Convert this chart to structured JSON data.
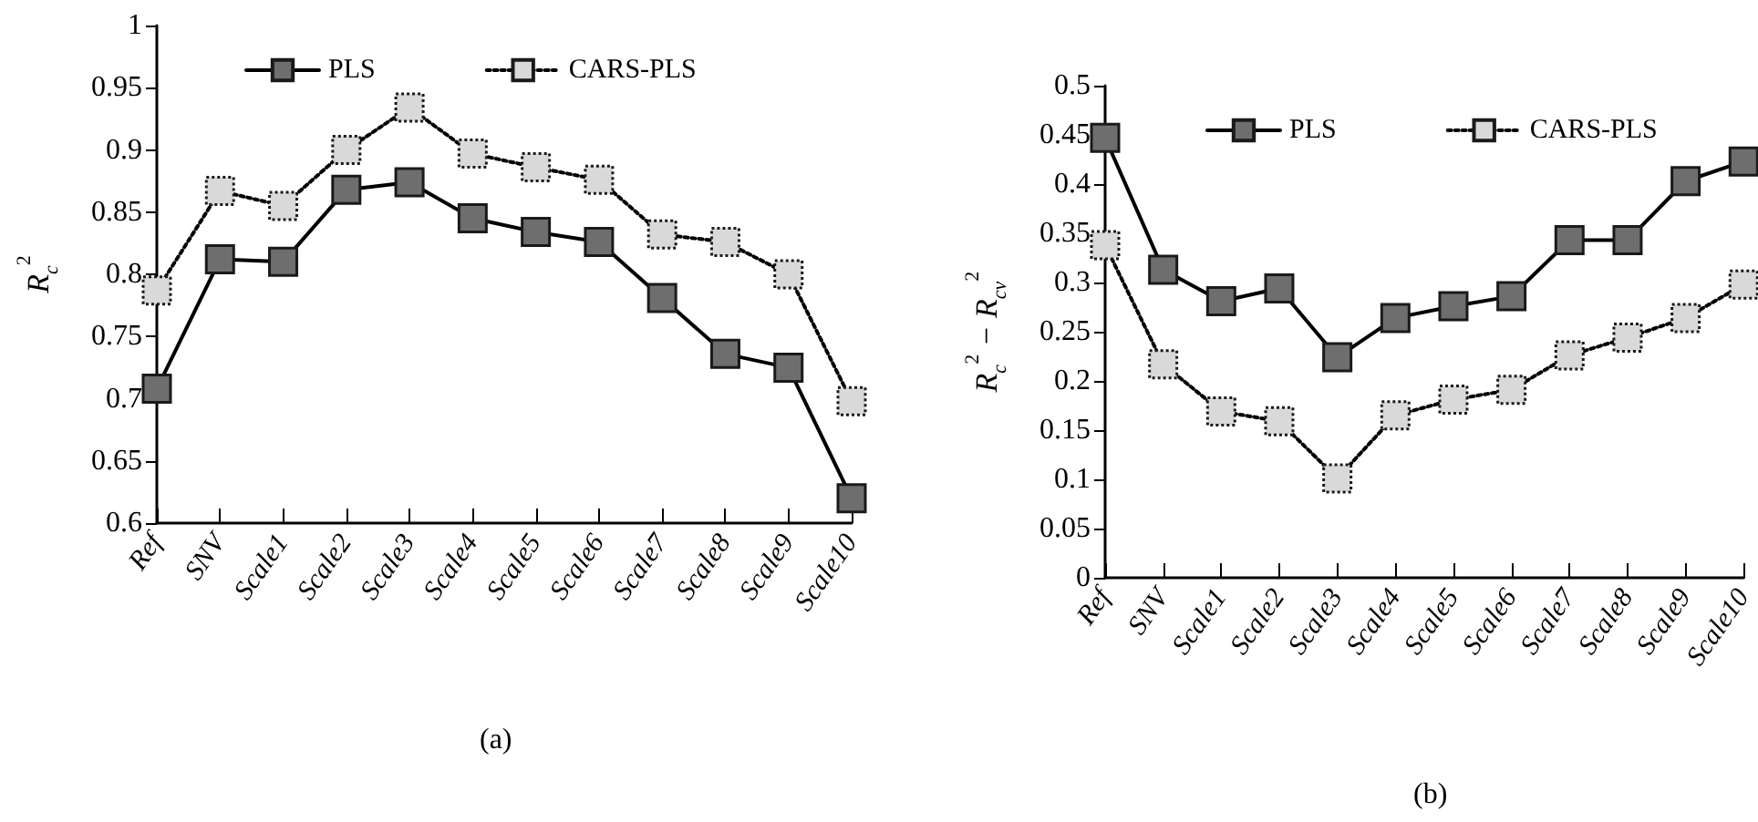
{
  "chart_data": [
    {
      "type": "line",
      "ylabel": "R$_{c}$$^{2}$",
      "categories": [
        "Ref",
        "SNV",
        "Scale1",
        "Scale2",
        "Scale3",
        "Scale4",
        "Scale5",
        "Scale6",
        "Scale7",
        "Scale8",
        "Scale9",
        "Scale10"
      ],
      "series": [
        {
          "name": "PLS",
          "color": "#6e6e6e",
          "line_style": "solid",
          "values": [
            0.708,
            0.812,
            0.81,
            0.868,
            0.874,
            0.845,
            0.834,
            0.826,
            0.781,
            0.736,
            0.725,
            0.62
          ]
        },
        {
          "name": "CARS-PLS",
          "color": "#d9d9d9",
          "line_style": "dotted",
          "values": [
            0.787,
            0.867,
            0.855,
            0.9,
            0.934,
            0.897,
            0.886,
            0.876,
            0.832,
            0.826,
            0.8,
            0.698
          ]
        }
      ],
      "ylim": [
        0.6,
        1
      ],
      "yticks": [
        0.6,
        0.65,
        0.7,
        0.75,
        0.8,
        0.85,
        0.9,
        0.95,
        1
      ],
      "grid": false,
      "legend": "top",
      "marker": "square",
      "annotations": [
        "(a)"
      ]
    },
    {
      "type": "line",
      "ylabel": "R$_{c}$$^{2}$ − R$_{cv}$$^{2}$",
      "categories": [
        "Ref",
        "SNV",
        "Scale1",
        "Scale2",
        "Scale3",
        "Scale4",
        "Scale5",
        "Scale6",
        "Scale7",
        "Scale8",
        "Scale9",
        "Scale10"
      ],
      "series": [
        {
          "name": "PLS",
          "color": "#6e6e6e",
          "line_style": "solid",
          "values": [
            0.447,
            0.313,
            0.281,
            0.294,
            0.224,
            0.264,
            0.276,
            0.286,
            0.343,
            0.343,
            0.403,
            0.423
          ]
        },
        {
          "name": "CARS-PLS",
          "color": "#d9d9d9",
          "line_style": "dotted",
          "values": [
            0.338,
            0.217,
            0.169,
            0.159,
            0.101,
            0.165,
            0.181,
            0.191,
            0.226,
            0.244,
            0.264,
            0.298
          ]
        }
      ],
      "ylim": [
        0,
        0.5
      ],
      "yticks": [
        0,
        0.05,
        0.1,
        0.15,
        0.2,
        0.25,
        0.3,
        0.35,
        0.4,
        0.45,
        0.5
      ],
      "grid": false,
      "legend": "top",
      "marker": "square",
      "annotations": [
        "(b)"
      ]
    }
  ]
}
